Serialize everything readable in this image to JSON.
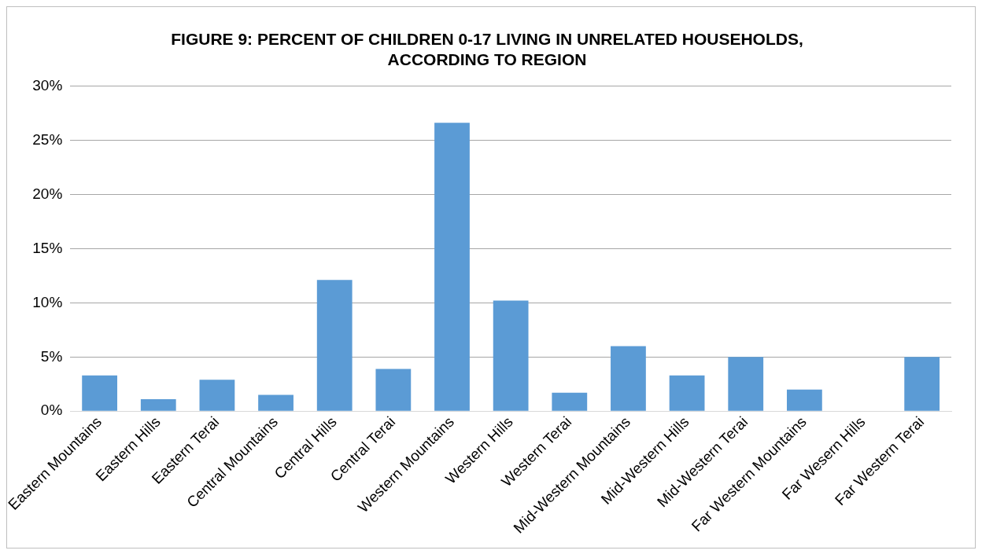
{
  "chart_data": {
    "type": "bar",
    "title": "FIGURE 9: PERCENT OF CHILDREN 0-17 LIVING IN UNRELATED HOUSEHOLDS, ACCORDING TO REGION",
    "categories": [
      "Eastern Mountains",
      "Eastern Hills",
      "Eastern Terai",
      "Central Mountains",
      "Central Hills",
      "Central Terai",
      "Western Mountains",
      "Western Hills",
      "Western Terai",
      "Mid-Western Mountains",
      "Mid-Western Hills",
      "Mid-Western Terai",
      "Far Western Mountains",
      "Far Wesern Hills",
      "Far Western Terai"
    ],
    "values": [
      3.3,
      1.1,
      2.9,
      1.5,
      12.1,
      3.9,
      26.6,
      10.2,
      1.7,
      6.0,
      3.3,
      5.0,
      2.0,
      0,
      5.0
    ],
    "color": "#5b9bd5",
    "ylim": [
      0,
      30
    ],
    "yticks": [
      {
        "value": 0,
        "label": "0%"
      },
      {
        "value": 5,
        "label": "5%"
      },
      {
        "value": 10,
        "label": "10%"
      },
      {
        "value": 15,
        "label": "15%"
      },
      {
        "value": 20,
        "label": "20%"
      },
      {
        "value": 25,
        "label": "25%"
      },
      {
        "value": 30,
        "label": "30%"
      }
    ],
    "grid": "y"
  }
}
